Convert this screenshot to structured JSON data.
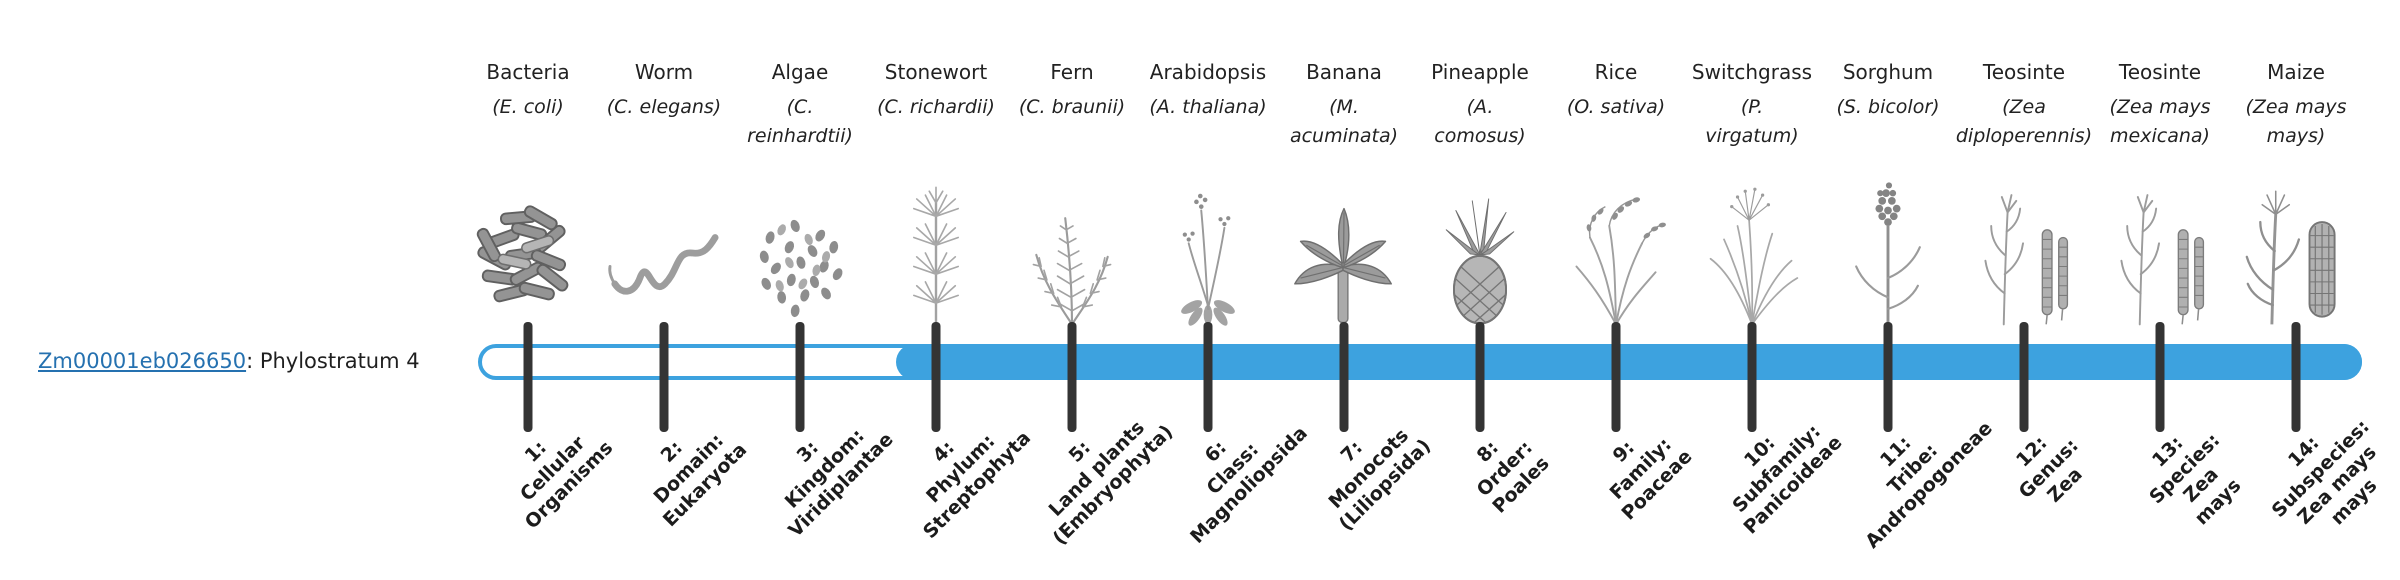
{
  "gene": {
    "id": "Zm00001eb026650",
    "suffix": ": Phylostratum 4",
    "phylostratum": 4
  },
  "colors": {
    "bar_blue": "#3da2df",
    "tick": "#343434",
    "link": "#2571b0"
  },
  "bar": {
    "filled_from_stratum": 4,
    "total_strata": 14
  },
  "organisms": [
    {
      "name": "Bacteria",
      "sci": [
        "(E. coli)"
      ],
      "icon": "bacteria-icon"
    },
    {
      "name": "Worm",
      "sci": [
        "(C. elegans)"
      ],
      "icon": "worm-icon"
    },
    {
      "name": "Algae",
      "sci": [
        "(C.",
        "reinhardtii)"
      ],
      "icon": "algae-icon"
    },
    {
      "name": "Stonewort",
      "sci": [
        "(C. richardii)"
      ],
      "icon": "stonewort-icon"
    },
    {
      "name": "Fern",
      "sci": [
        "(C. braunii)"
      ],
      "icon": "fern-icon"
    },
    {
      "name": "Arabidopsis",
      "sci": [
        "(A. thaliana)"
      ],
      "icon": "arabidopsis-icon"
    },
    {
      "name": "Banana",
      "sci": [
        "(M.",
        "acuminata)"
      ],
      "icon": "banana-icon"
    },
    {
      "name": "Pineapple",
      "sci": [
        "(A.",
        "comosus)"
      ],
      "icon": "pineapple-icon"
    },
    {
      "name": "Rice",
      "sci": [
        "(O. sativa)"
      ],
      "icon": "rice-icon"
    },
    {
      "name": "Switchgrass",
      "sci": [
        "(P.",
        "virgatum)"
      ],
      "icon": "switchgrass-icon"
    },
    {
      "name": "Sorghum",
      "sci": [
        "(S. bicolor)"
      ],
      "icon": "sorghum-icon"
    },
    {
      "name": "Teosinte",
      "sci": [
        "(Zea",
        "diploperennis)"
      ],
      "icon": "teosinte-icon"
    },
    {
      "name": "Teosinte",
      "sci": [
        "(Zea mays",
        "mexicana)"
      ],
      "icon": "teosinte-icon"
    },
    {
      "name": "Maize",
      "sci": [
        "(Zea mays",
        "mays)"
      ],
      "icon": "maize-icon"
    }
  ],
  "strata": [
    {
      "lines": [
        "1:",
        "Cellular",
        "Organisms"
      ]
    },
    {
      "lines": [
        "2:",
        "Domain:",
        "Eukaryota"
      ]
    },
    {
      "lines": [
        "3:",
        "Kingdom:",
        "Viridiplantae"
      ]
    },
    {
      "lines": [
        "4:",
        "Phylum:",
        "Streptophyta"
      ]
    },
    {
      "lines": [
        "5:",
        "Land plants",
        "(Embryophyta)"
      ]
    },
    {
      "lines": [
        "6:",
        "Class:",
        "Magnoliopsida"
      ]
    },
    {
      "lines": [
        "7:",
        "Monocots",
        "(Liliopsida)"
      ]
    },
    {
      "lines": [
        "8:",
        "Order:",
        "Poales"
      ]
    },
    {
      "lines": [
        "9:",
        "Family:",
        "Poaceae"
      ]
    },
    {
      "lines": [
        "10:",
        "Subfamily:",
        "Panicoideae"
      ]
    },
    {
      "lines": [
        "11:",
        "Tribe:",
        "Andropogoneae"
      ]
    },
    {
      "lines": [
        "12:",
        "Genus:",
        "Zea"
      ]
    },
    {
      "lines": [
        "13:",
        "Species:",
        "Zea",
        "mays"
      ]
    },
    {
      "lines": [
        "14:",
        "Subspecies:",
        "Zea mays",
        "mays"
      ]
    }
  ]
}
